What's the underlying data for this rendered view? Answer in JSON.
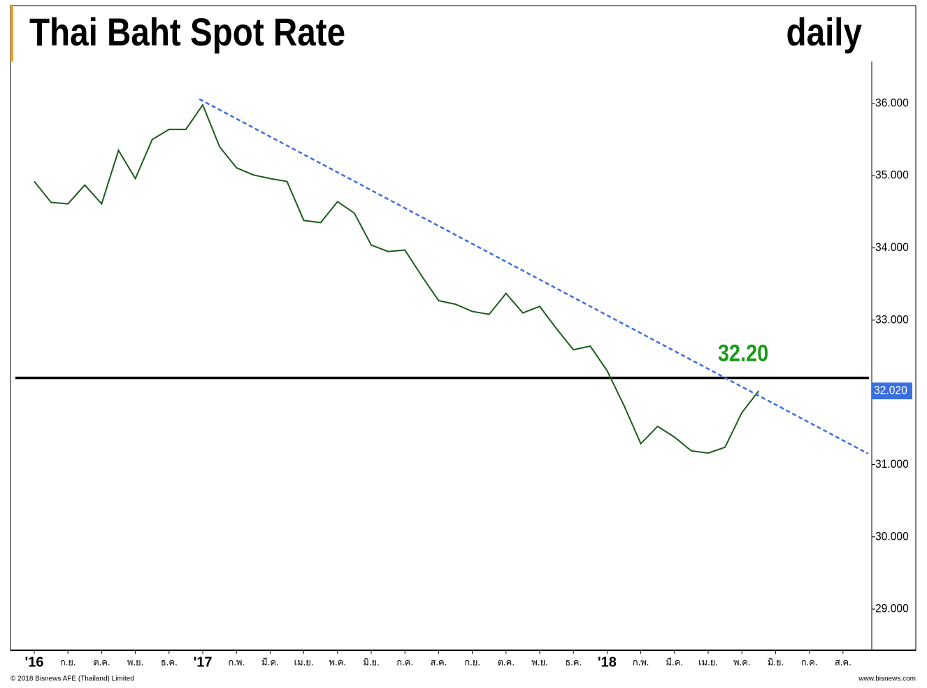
{
  "chart_data": {
    "type": "line",
    "title": "Thai Baht Spot Rate",
    "subtitle": "daily",
    "footer_left": "© 2018 Bisnews AFE (Thailand) Limited",
    "footer_right": "www.bisnews.com",
    "categories": [
      "'16",
      null,
      "ก.ย.",
      null,
      "ต.ค.",
      null,
      "พ.ย.",
      null,
      "ธ.ค.",
      null,
      "'17",
      null,
      "ก.พ.",
      null,
      "มี.ค.",
      null,
      "เม.ย.",
      null,
      "พ.ค.",
      null,
      "มิ.ย.",
      null,
      "ก.ค.",
      null,
      "ส.ค.",
      null,
      "ก.ย.",
      null,
      "ต.ค.",
      null,
      "พ.ย.",
      null,
      "ธ.ค.",
      null,
      "'18",
      null,
      "ก.พ.",
      null,
      "มี.ค.",
      null,
      "เม.ย.",
      null,
      "พ.ค.",
      null,
      "มิ.ย.",
      null,
      "ก.ค.",
      null,
      "ส.ค.",
      null
    ],
    "series": [
      {
        "color": "#1a5c1a",
        "values": [
          34.92,
          34.63,
          34.61,
          34.87,
          34.61,
          35.35,
          34.96,
          35.5,
          35.64,
          35.64,
          35.98,
          35.4,
          35.11,
          35.01,
          34.96,
          34.92,
          34.38,
          34.35,
          34.64,
          34.48,
          34.04,
          33.95,
          33.97,
          33.61,
          33.27,
          33.22,
          33.12,
          33.08,
          33.37,
          33.1,
          33.19,
          32.88,
          32.59,
          32.64,
          32.3,
          31.82,
          31.29,
          31.53,
          31.38,
          31.19,
          31.16,
          31.24,
          31.72,
          32.02,
          null,
          null,
          null,
          null,
          null,
          null
        ]
      }
    ],
    "ylim": [
      28.43,
      36.58
    ],
    "yticks": [
      {
        "value": 29,
        "label": "29.000"
      },
      {
        "value": 30,
        "label": "30.000"
      },
      {
        "value": 31,
        "label": "31.000"
      },
      {
        "value": 33,
        "label": "33.000"
      },
      {
        "value": 34,
        "label": "34.000"
      },
      {
        "value": 35,
        "label": "35.000"
      },
      {
        "value": 36,
        "label": "36.000"
      }
    ],
    "level": {
      "value": 32.2,
      "label": "32.20",
      "color": "#000000",
      "label_color": "#1a9a1a"
    },
    "trendline": {
      "x": [
        9.8,
        49.5
      ],
      "values": [
        36.06,
        31.15
      ],
      "color": "#3a6fe0"
    },
    "last": {
      "value": 32.02,
      "label": "32.020",
      "color": "#3a6fe0"
    }
  }
}
